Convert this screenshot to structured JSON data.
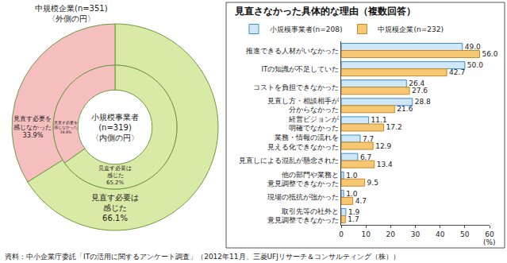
{
  "chart_data": [
    {
      "type": "pie",
      "colors": [
        "#d9eaa6",
        "#f5bfc0"
      ],
      "data_labels": true,
      "series": [
        {
          "name": "中規模企業(n=351)",
          "annotation": "〈外側の円〉",
          "values": [
            66.1,
            33.9
          ],
          "value_labels": [
            "見直す必要は\n感じた\n66.1%",
            "見直す必要を\n感じなかった\n33.9%"
          ]
        },
        {
          "name": "小規模事業者\n(n=319)",
          "annotation": "〈内側の円〉",
          "values": [
            65.2,
            34.8
          ],
          "value_labels": [
            "見直す必要は\n感じた\n65.2%",
            "見直す必要を\n感じなかった\n34.8%"
          ]
        }
      ]
    },
    {
      "type": "bar",
      "orientation": "horizontal",
      "title": "見直さなかった具体的な理由（複数回答）",
      "categories": [
        "推進できる人材がいなかった",
        "ITの知識が不足していた",
        "コストを負担できなかった",
        "見直し方・相談相手が\n分からなかった",
        "経営ビジョンが\n明確でなかった",
        "業務・情報の流れを\n見える化できなかった",
        "見直しによる混乱が懸念された",
        "他の部門や業務と\n意見調整できなかった",
        "現場の抵抗が強かった",
        "取引先等の社外と\n意見調整できなかった"
      ],
      "series": [
        {
          "name": "小規模事業者(n=208)",
          "color": "#cfe7f7",
          "values": [
            49.0,
            50.0,
            26.4,
            28.8,
            11.1,
            7.7,
            6.7,
            1.0,
            1.0,
            1.9
          ],
          "value_labels": [
            "49.0",
            "50.0",
            "26.4",
            "28.8",
            "11.1",
            "7.7",
            "6.7",
            "1.0",
            "1.0",
            "1.9"
          ]
        },
        {
          "name": "中規模企業(n=232)",
          "color": "#f7c873",
          "values": [
            56.0,
            42.7,
            27.6,
            21.6,
            17.2,
            12.9,
            13.4,
            9.5,
            4.7,
            1.7
          ],
          "value_labels": [
            "56.0",
            "42.7",
            "27.6",
            "21.6",
            "17.2",
            "12.9",
            "13.4",
            "9.5",
            "4.7",
            "1.7"
          ]
        }
      ],
      "xlim": [
        0,
        60
      ],
      "xticks": [
        0,
        10,
        20,
        30,
        40,
        50,
        60
      ],
      "xlabel": "(%)",
      "grid": false,
      "legend": "top",
      "data_labels": true
    }
  ],
  "source": "資料：中小企業庁委託「ITの活用に関するアンケート調査」（2012年11月、三菱UFJリサーチ＆コンサルティング（株））"
}
